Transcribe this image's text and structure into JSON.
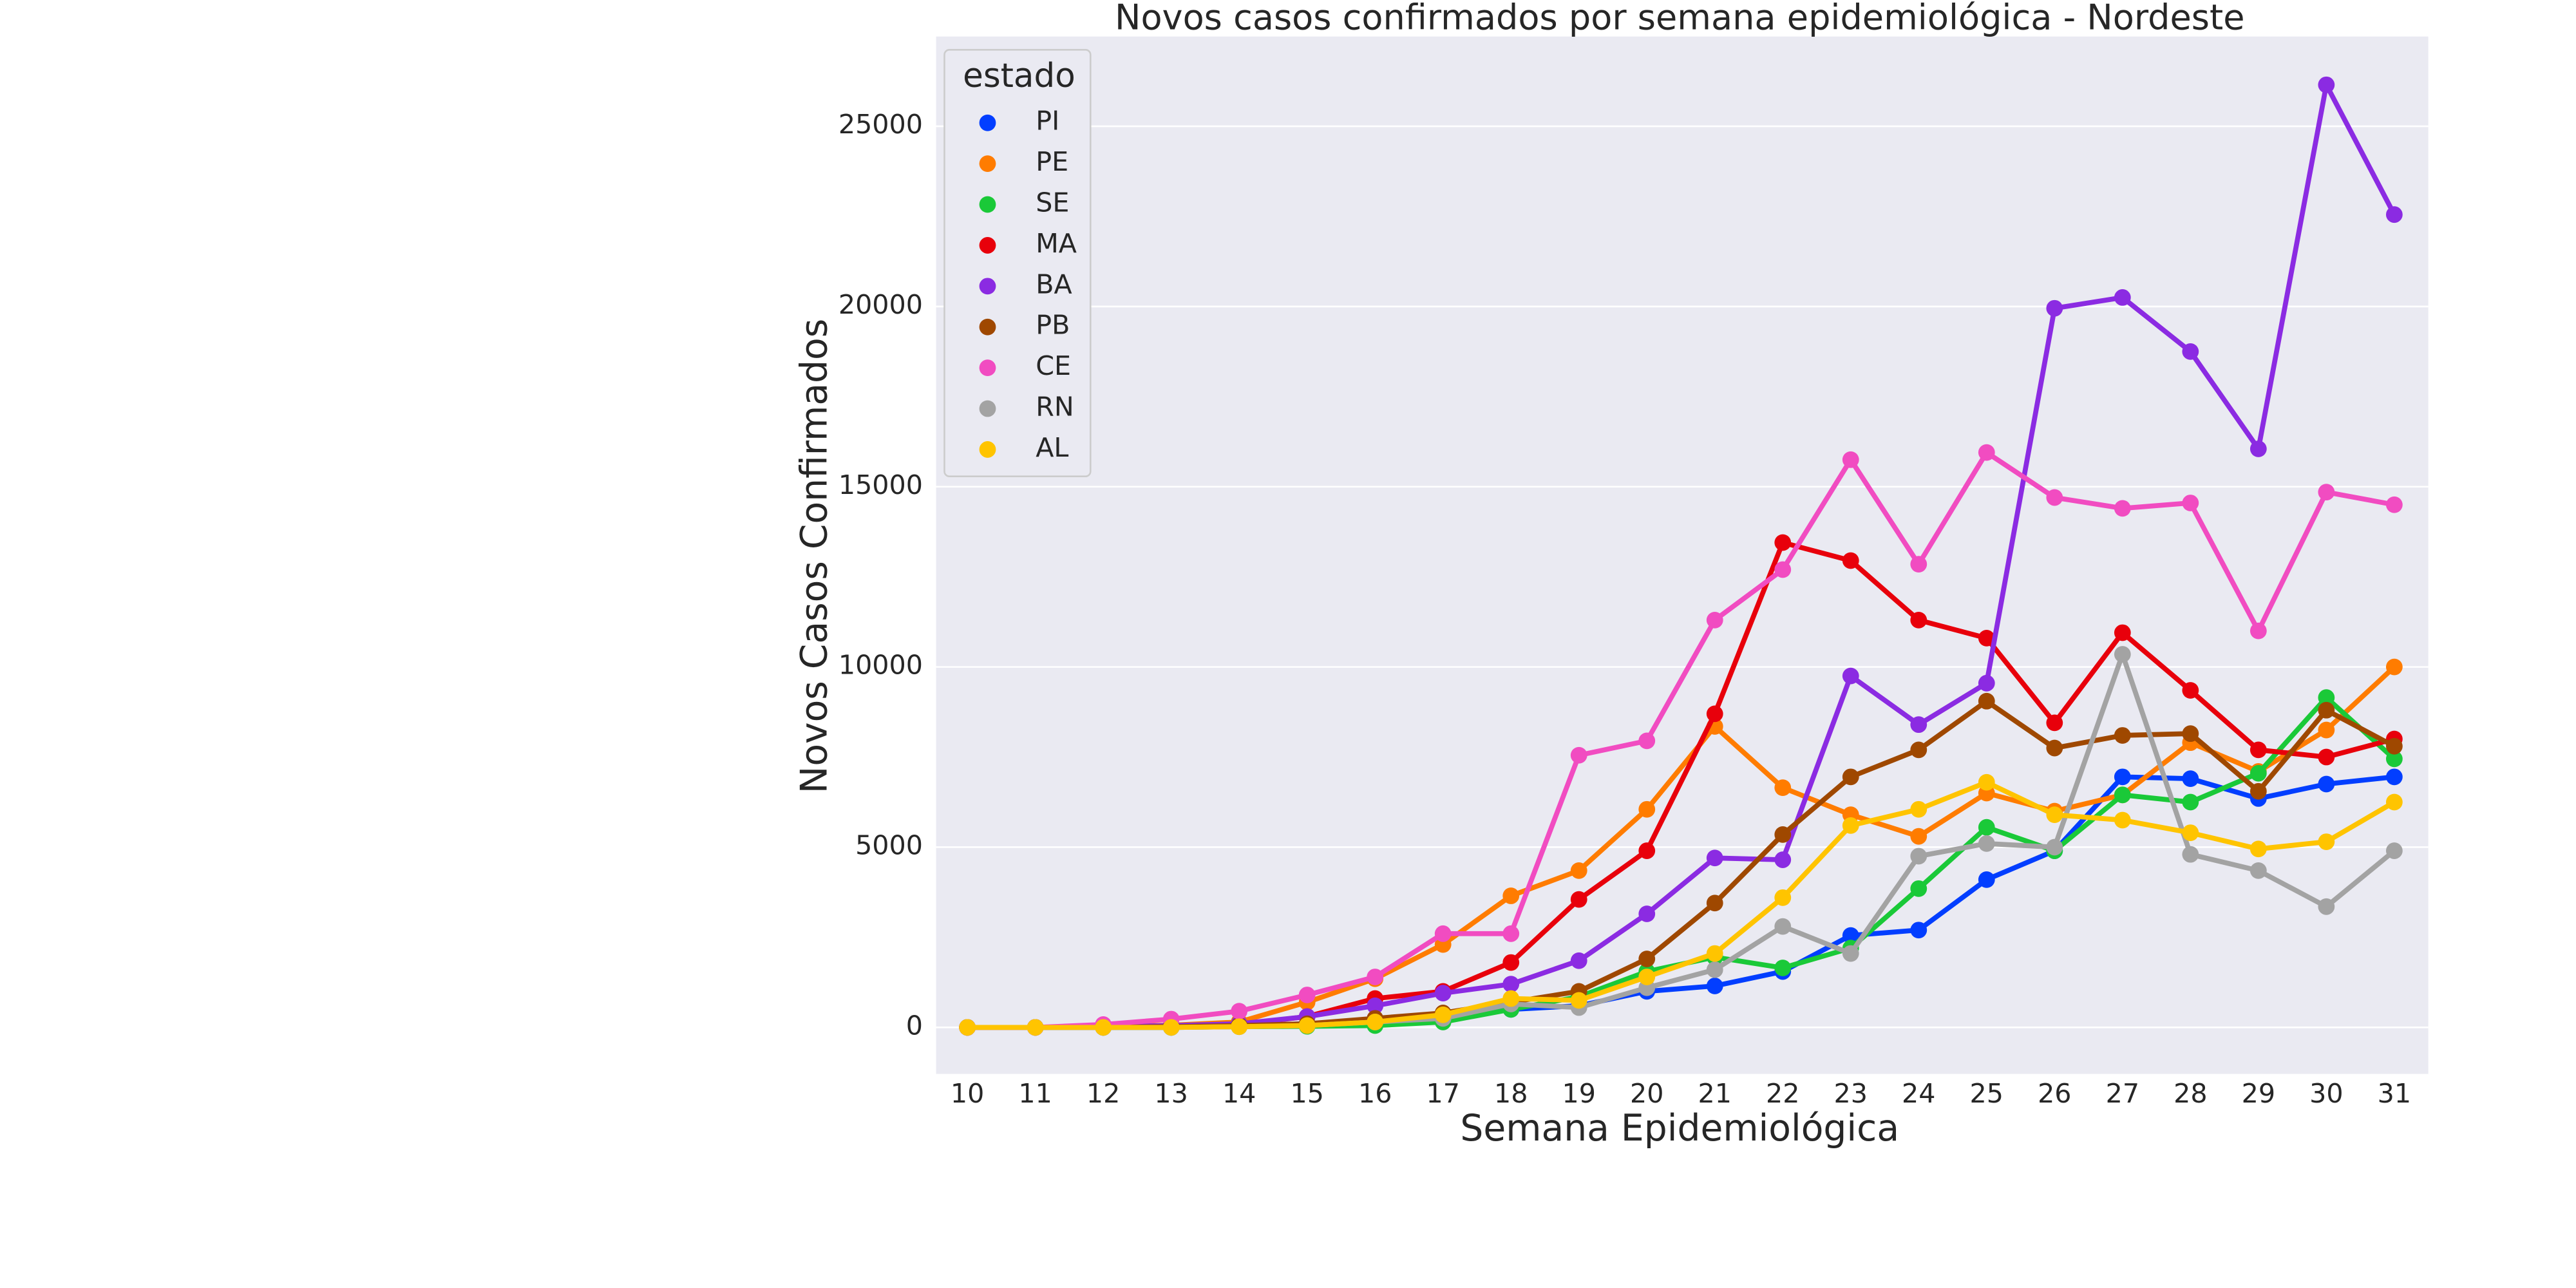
{
  "chart_data": {
    "type": "line",
    "title": "Novos casos confirmados por semana epidemiológica - Nordeste",
    "xlabel": "Semana Epidemiológica",
    "ylabel": "Novos Casos Confirmados",
    "categories": [
      "10",
      "11",
      "12",
      "13",
      "14",
      "15",
      "16",
      "17",
      "18",
      "19",
      "20",
      "21",
      "22",
      "23",
      "24",
      "25",
      "26",
      "27",
      "28",
      "29",
      "30",
      "31"
    ],
    "ylim": [
      -1290,
      27490
    ],
    "yticks": [
      0,
      5000,
      10000,
      15000,
      20000,
      25000
    ],
    "grid": true,
    "legend_title": "estado",
    "legend": "upper left",
    "series": [
      {
        "name": "PI",
        "color": "#023eff",
        "values": [
          0,
          0,
          0,
          0,
          50,
          100,
          150,
          250,
          500,
          600,
          1000,
          1150,
          1550,
          2550,
          2700,
          4100,
          4900,
          6950,
          6900,
          6350,
          6750,
          6950
        ]
      },
      {
        "name": "PE",
        "color": "#ff7c00",
        "values": [
          0,
          0,
          30,
          60,
          150,
          700,
          1350,
          2300,
          3650,
          4350,
          6050,
          8350,
          6650,
          5900,
          5300,
          6500,
          6000,
          6450,
          7900,
          7100,
          8250,
          10000
        ]
      },
      {
        "name": "SE",
        "color": "#1ac938",
        "values": [
          0,
          0,
          0,
          0,
          20,
          30,
          50,
          150,
          500,
          850,
          1550,
          1950,
          1650,
          2200,
          3850,
          5550,
          4900,
          6450,
          6250,
          7050,
          9150,
          7450
        ]
      },
      {
        "name": "MA",
        "color": "#e8000b",
        "values": [
          0,
          0,
          20,
          40,
          80,
          300,
          800,
          1000,
          1800,
          3550,
          4900,
          8700,
          13450,
          12950,
          11300,
          10800,
          8450,
          10950,
          9350,
          7700,
          7500,
          8000
        ]
      },
      {
        "name": "BA",
        "color": "#8b2be2",
        "values": [
          0,
          0,
          20,
          50,
          100,
          300,
          600,
          950,
          1200,
          1850,
          3150,
          4700,
          4650,
          9750,
          8400,
          9550,
          19950,
          20250,
          18750,
          16050,
          26150,
          22550
        ]
      },
      {
        "name": "PB",
        "color": "#9f4800",
        "values": [
          0,
          0,
          0,
          20,
          50,
          100,
          250,
          400,
          700,
          1000,
          1900,
          3450,
          5350,
          6950,
          7700,
          9050,
          7750,
          8100,
          8150,
          6550,
          8800,
          7800
        ]
      },
      {
        "name": "CE",
        "color": "#f14cc1",
        "values": [
          0,
          0,
          80,
          230,
          450,
          900,
          1400,
          2600,
          2600,
          7550,
          7950,
          11300,
          12700,
          15750,
          12850,
          15950,
          14700,
          14400,
          14550,
          11000,
          14850,
          14500
        ]
      },
      {
        "name": "RN",
        "color": "#a3a3a3",
        "values": [
          0,
          0,
          0,
          0,
          20,
          50,
          150,
          250,
          650,
          550,
          1100,
          1600,
          2800,
          2050,
          4750,
          5100,
          5000,
          10350,
          4800,
          4350,
          3350,
          4900
        ]
      },
      {
        "name": "AL",
        "color": "#ffc400",
        "values": [
          0,
          0,
          0,
          0,
          20,
          50,
          150,
          350,
          800,
          750,
          1400,
          2050,
          3600,
          5600,
          6050,
          6800,
          5900,
          5750,
          5400,
          4950,
          5150,
          6250
        ]
      }
    ]
  }
}
